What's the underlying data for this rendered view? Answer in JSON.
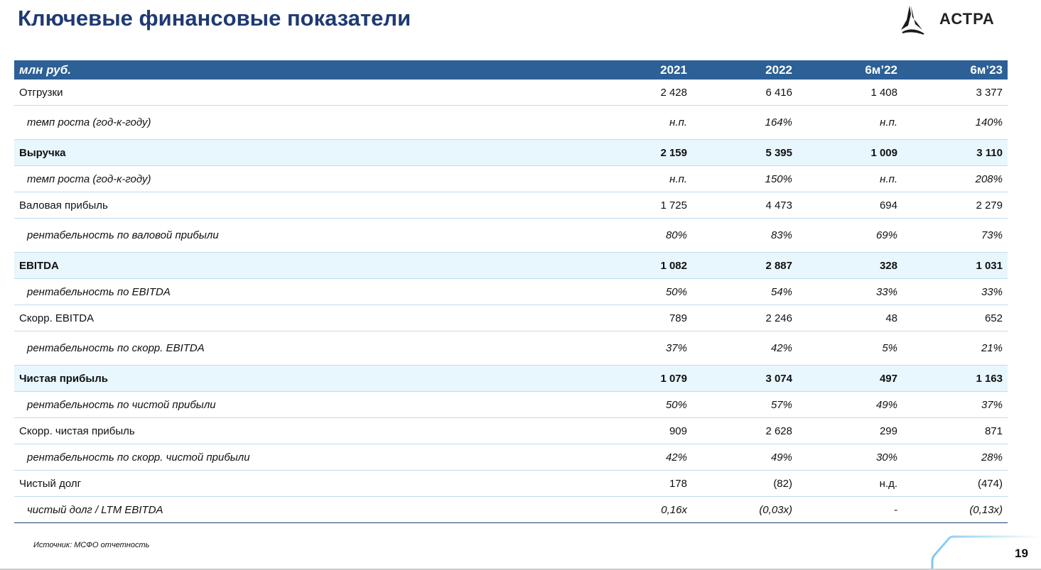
{
  "title": "Ключевые финансовые показатели",
  "logo": {
    "text": "АСТРА"
  },
  "table": {
    "headers": [
      "млн руб.",
      "2021",
      "2022",
      "6м’22",
      "6м’23"
    ],
    "rows": [
      {
        "label": "Отгрузки",
        "values": [
          "2 428",
          "6 416",
          "1 408",
          "3 377"
        ],
        "style": "normal"
      },
      {
        "label": "темп роста (год-к-году)",
        "values": [
          "н.п.",
          "164%",
          "н.п.",
          "140%"
        ],
        "style": "sub"
      },
      {
        "label": "Выручка",
        "values": [
          "2 159",
          "5 395",
          "1 009",
          "3 110"
        ],
        "style": "highlight"
      },
      {
        "label": "темп роста (год-к-году)",
        "values": [
          "н.п.",
          "150%",
          "н.п.",
          "208%"
        ],
        "style": "sub"
      },
      {
        "label": "Валовая прибыль",
        "values": [
          "1 725",
          "4 473",
          "694",
          "2 279"
        ],
        "style": "normal"
      },
      {
        "label": "рентабельность по валовой прибыли",
        "values": [
          "80%",
          "83%",
          "69%",
          "73%"
        ],
        "style": "sub"
      },
      {
        "label": "EBITDA",
        "values": [
          "1 082",
          "2 887",
          "328",
          "1 031"
        ],
        "style": "highlight"
      },
      {
        "label": "рентабельность по EBITDA",
        "values": [
          "50%",
          "54%",
          "33%",
          "33%"
        ],
        "style": "sub"
      },
      {
        "label": "Скорр. EBITDA",
        "values": [
          "789",
          "2 246",
          "48",
          "652"
        ],
        "style": "normal"
      },
      {
        "label": "рентабельность по скорр. EBITDA",
        "values": [
          "37%",
          "42%",
          "5%",
          "21%"
        ],
        "style": "sub"
      },
      {
        "label": "Чистая прибыль",
        "values": [
          "1 079",
          "3 074",
          "497",
          "1 163"
        ],
        "style": "highlight"
      },
      {
        "label": "рентабельность по чистой прибыли",
        "values": [
          "50%",
          "57%",
          "49%",
          "37%"
        ],
        "style": "sub"
      },
      {
        "label": "Скорр. чистая прибыль",
        "values": [
          "909",
          "2 628",
          "299",
          "871"
        ],
        "style": "normal"
      },
      {
        "label": "рентабельность по скорр. чистой прибыли",
        "values": [
          "42%",
          "49%",
          "30%",
          "28%"
        ],
        "style": "sub"
      },
      {
        "label": "Чистый долг",
        "values": [
          "178",
          "(82)",
          "н.д.",
          "(474)"
        ],
        "style": "normal"
      },
      {
        "label": "чистый долг / LTM EBITDA",
        "values": [
          "0,16x",
          "(0,03x)",
          "-",
          "(0,13x)"
        ],
        "style": "sub"
      }
    ]
  },
  "source": "Источник: МСФО отчетность",
  "page_number": "19",
  "colors": {
    "title": "#1f3a73",
    "header_bg": "#2c6096",
    "highlight_bg": "#e8f6fd"
  }
}
